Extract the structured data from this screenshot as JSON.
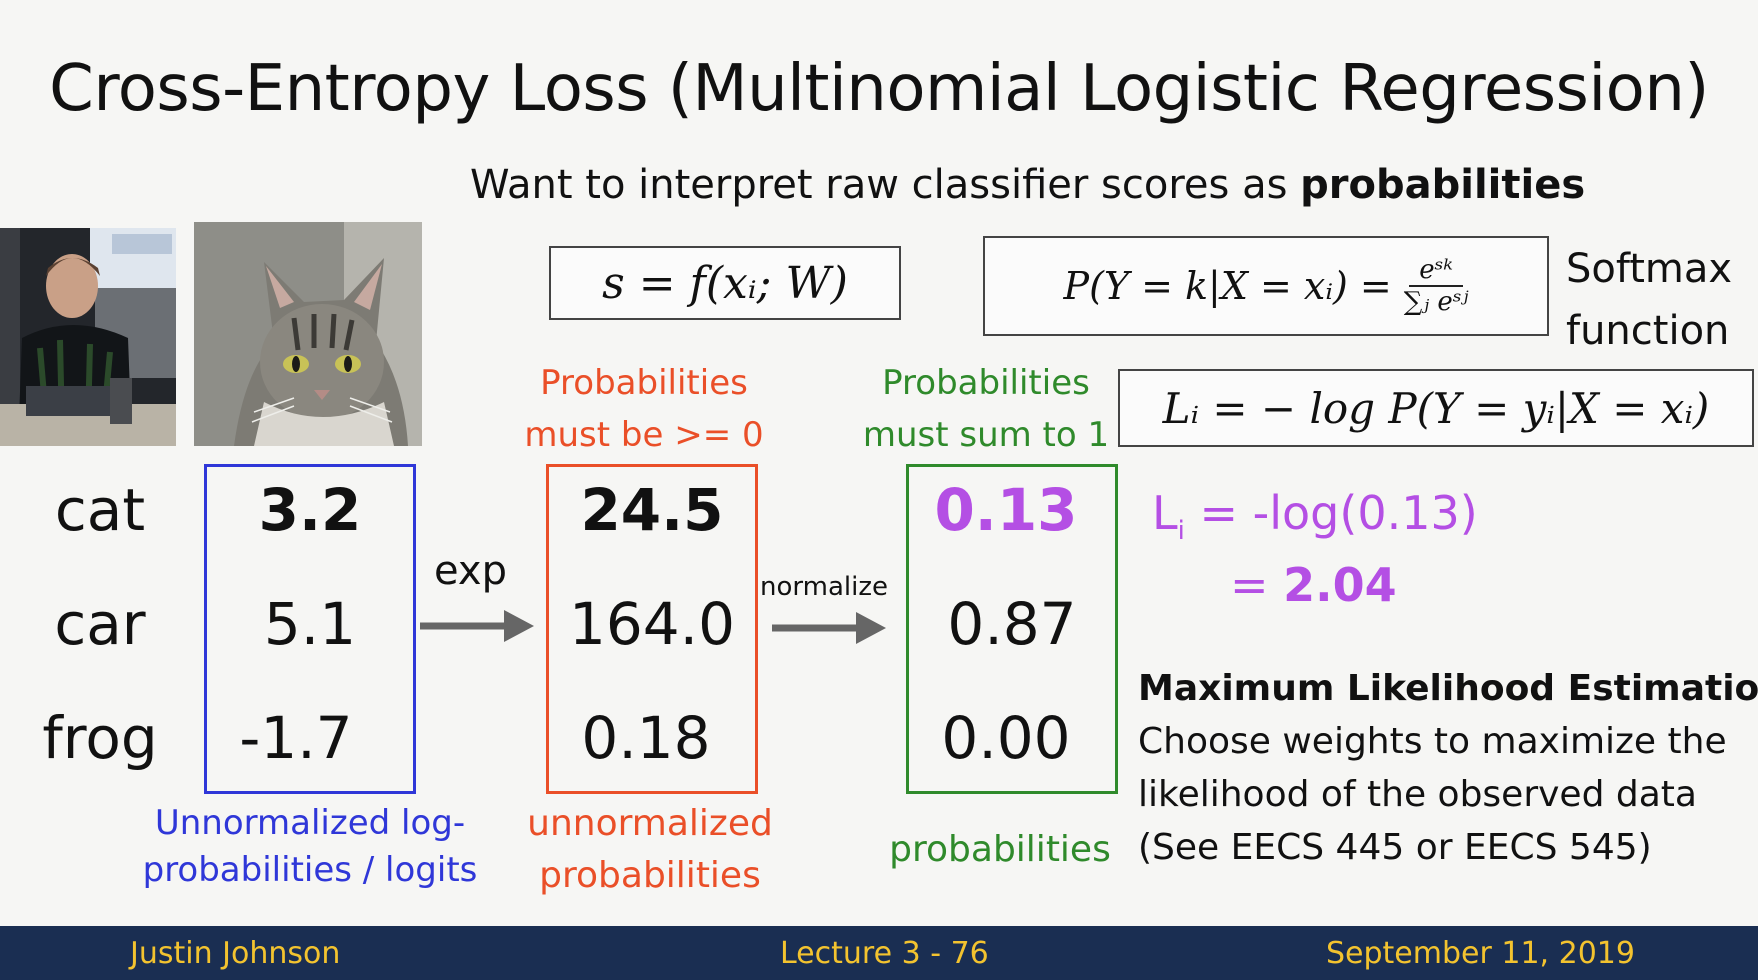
{
  "title": "Cross-Entropy Loss (Multinomial Logistic Regression)",
  "subtitle": {
    "text": "Want to interpret raw classifier scores as ",
    "bold": "probabilities"
  },
  "formulas": {
    "score": "s = f(xᵢ; W)",
    "softmax_lhs": "P(Y = k|X = xᵢ) =",
    "softmax_num": "eˢᵏ",
    "softmax_den": "∑ⱼ eˢʲ",
    "loss": "Lᵢ = − log P(Y = yᵢ|X = xᵢ)"
  },
  "softmax_label": [
    "Softmax",
    "function"
  ],
  "classes": [
    "cat",
    "car",
    "frog"
  ],
  "logits": [
    "3.2",
    "5.1",
    "-1.7"
  ],
  "exp_label": "exp",
  "unnormalized": [
    "24.5",
    "164.0",
    "0.18"
  ],
  "normalize_label": "normalize",
  "probabilities": [
    "0.13",
    "0.87",
    "0.00"
  ],
  "notes": {
    "nonneg": [
      "Probabilities",
      "must be >= 0"
    ],
    "sum": [
      "Probabilities",
      "must sum to 1"
    ]
  },
  "captions": {
    "logits": [
      "Unnormalized log-",
      "probabilities / logits"
    ],
    "unnormalized": [
      "unnormalized",
      "probabilities"
    ],
    "probabilities": "probabilities"
  },
  "loss_calc": {
    "lhs": "L",
    "sub": "i",
    "rhs": " = -log(0.13)",
    "line2_eq": "= ",
    "line2_val": "2.04"
  },
  "mle": {
    "heading": "Maximum Likelihood Estimation",
    "lines": [
      "Choose weights to maximize the",
      "likelihood of the observed data",
      "(See EECS 445 or EECS 545)"
    ]
  },
  "footer": {
    "left": "Justin Johnson",
    "center": "Lecture 3 - 76",
    "right": "September 11, 2019"
  },
  "colors": {
    "blue": "#2f37d8",
    "red": "#ea4f28",
    "green": "#2f8a2b",
    "purple": "#b44fe4",
    "footer_bg": "#1a2e52",
    "footer_text": "#f3c32f"
  },
  "images": [
    "lecturer-webcam",
    "tabby-cat-photo"
  ]
}
